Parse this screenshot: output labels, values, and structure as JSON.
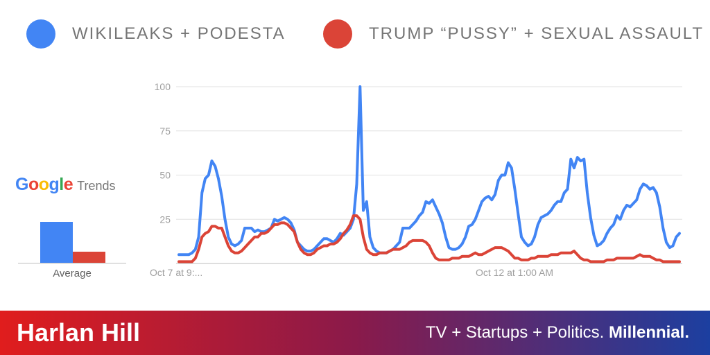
{
  "chart_data": {
    "type": "line",
    "x_ticks": [
      "Oct 7 at 9:...",
      "Oct 12 at 1:00 AM"
    ],
    "y_ticks": [
      25,
      50,
      75,
      100
    ],
    "ylim": [
      0,
      100
    ],
    "grid": true,
    "legend_position": "top",
    "series": [
      {
        "name": "WIKILEAKS + PODESTA",
        "color": "#4285f4",
        "values": [
          5,
          5,
          5,
          5,
          6,
          8,
          15,
          40,
          48,
          50,
          58,
          55,
          48,
          38,
          25,
          15,
          11,
          10,
          11,
          13,
          20,
          20,
          20,
          18,
          19,
          18,
          18,
          19,
          20,
          25,
          24,
          25,
          26,
          25,
          23,
          19,
          12,
          10,
          8,
          7,
          7,
          8,
          10,
          12,
          14,
          14,
          13,
          12,
          14,
          17,
          16,
          18,
          20,
          25,
          45,
          100,
          30,
          35,
          15,
          9,
          7,
          6,
          6,
          6,
          7,
          8,
          10,
          12,
          20,
          20,
          20,
          22,
          24,
          27,
          29,
          35,
          34,
          36,
          32,
          28,
          23,
          15,
          9,
          8,
          8,
          9,
          11,
          15,
          21,
          22,
          25,
          30,
          35,
          37,
          38,
          36,
          39,
          47,
          50,
          50,
          57,
          54,
          42,
          28,
          15,
          12,
          10,
          11,
          15,
          22,
          26,
          27,
          28,
          30,
          33,
          35,
          35,
          40,
          42,
          59,
          54,
          60,
          58,
          59,
          40,
          26,
          16,
          10,
          11,
          13,
          17,
          20,
          22,
          27,
          25,
          30,
          33,
          32,
          34,
          36,
          42,
          45,
          44,
          42,
          43,
          40,
          32,
          20,
          12,
          9,
          10,
          15,
          17
        ]
      },
      {
        "name": "TRUMP “PUSSY” + SEXUAL ASSAULT",
        "color": "#db4437",
        "values": [
          1,
          1,
          1,
          1,
          1,
          3,
          8,
          15,
          17,
          18,
          21,
          21,
          20,
          20,
          15,
          10,
          7,
          6,
          6,
          7,
          9,
          11,
          13,
          15,
          15,
          17,
          17,
          18,
          20,
          22,
          22,
          23,
          23,
          22,
          20,
          18,
          12,
          8,
          6,
          5,
          5,
          6,
          8,
          9,
          10,
          10,
          11,
          11,
          12,
          14,
          17,
          19,
          22,
          27,
          27,
          25,
          15,
          8,
          6,
          5,
          5,
          6,
          6,
          6,
          7,
          8,
          8,
          8,
          9,
          10,
          12,
          13,
          13,
          13,
          13,
          12,
          10,
          6,
          3,
          2,
          2,
          2,
          2,
          3,
          3,
          3,
          4,
          4,
          4,
          5,
          6,
          5,
          5,
          6,
          7,
          8,
          9,
          9,
          9,
          8,
          7,
          5,
          3,
          3,
          2,
          2,
          2,
          3,
          3,
          4,
          4,
          4,
          4,
          5,
          5,
          5,
          6,
          6,
          6,
          6,
          7,
          5,
          3,
          2,
          2,
          1,
          1,
          1,
          1,
          1,
          2,
          2,
          2,
          3,
          3,
          3,
          3,
          3,
          3,
          4,
          5,
          4,
          4,
          4,
          3,
          2,
          2,
          1,
          1,
          1,
          1,
          1,
          1
        ]
      }
    ],
    "average": {
      "label": "Average",
      "values": [
        24,
        7
      ]
    }
  },
  "logo": {
    "google": "Google",
    "trends": "Trends"
  },
  "footer": {
    "name": "Harlan Hill",
    "tagline_plain": "TV + Startups + Politics.",
    "tagline_bold": "Millennial."
  },
  "colors": {
    "blue": "#4285f4",
    "red": "#db4437",
    "google_letters": [
      "#4285f4",
      "#ea4335",
      "#fbbc05",
      "#4285f4",
      "#34a853",
      "#ea4335"
    ],
    "footer_gradient": [
      "#e01d1d",
      "#8a1a4a",
      "#1c3fa0"
    ]
  }
}
